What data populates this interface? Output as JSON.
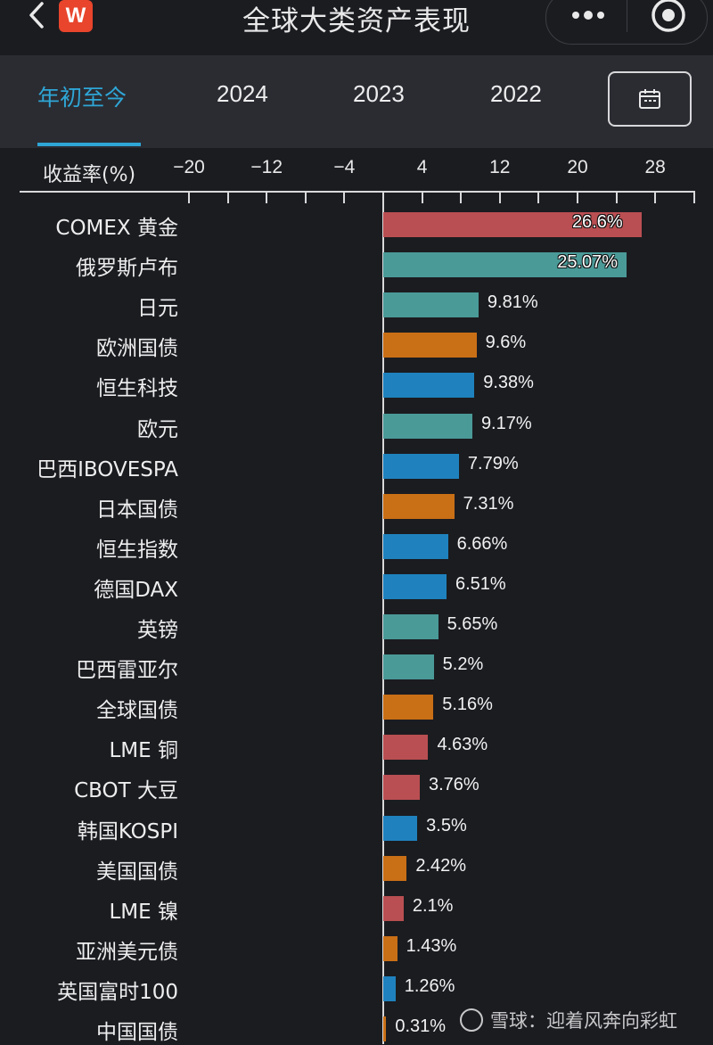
{
  "nav": {
    "title": "全球大类资产表现",
    "logo_text": "W",
    "back_icon": "chevron-left-icon",
    "more_icon": "more-dots-icon",
    "close_icon": "target-circle-icon"
  },
  "tabs": [
    {
      "label": "年初至今",
      "active": true
    },
    {
      "label": "2024",
      "active": false
    },
    {
      "label": "2023",
      "active": false
    },
    {
      "label": "2022",
      "active": false
    }
  ],
  "calendar_icon": "calendar-icon",
  "axis": {
    "title": "收益率(%)",
    "ticks": [
      "−20",
      "−12",
      "−4",
      "4",
      "12",
      "20",
      "28"
    ]
  },
  "colors": {
    "commodity": "#b94f52",
    "currency": "#4a9a98",
    "bond": "#c96f16",
    "equity": "#1f82be",
    "active_tab": "#2ea6d6"
  },
  "chart_data": {
    "type": "bar",
    "orientation": "horizontal",
    "xlabel": "收益率(%)",
    "xlim": [
      -24,
      32
    ],
    "xticks": [
      -20,
      -12,
      -4,
      4,
      12,
      20,
      28
    ],
    "rows": [
      {
        "label": "COMEX 黄金",
        "value": 26.6,
        "text": "26.6%",
        "group": "commodity"
      },
      {
        "label": "俄罗斯卢布",
        "value": 25.07,
        "text": "25.07%",
        "group": "currency"
      },
      {
        "label": "日元",
        "value": 9.81,
        "text": "9.81%",
        "group": "currency"
      },
      {
        "label": "欧洲国债",
        "value": 9.6,
        "text": "9.6%",
        "group": "bond"
      },
      {
        "label": "恒生科技",
        "value": 9.38,
        "text": "9.38%",
        "group": "equity"
      },
      {
        "label": "欧元",
        "value": 9.17,
        "text": "9.17%",
        "group": "currency"
      },
      {
        "label": "巴西IBOVESPA",
        "value": 7.79,
        "text": "7.79%",
        "group": "equity"
      },
      {
        "label": "日本国债",
        "value": 7.31,
        "text": "7.31%",
        "group": "bond"
      },
      {
        "label": "恒生指数",
        "value": 6.66,
        "text": "6.66%",
        "group": "equity"
      },
      {
        "label": "德国DAX",
        "value": 6.51,
        "text": "6.51%",
        "group": "equity"
      },
      {
        "label": "英镑",
        "value": 5.65,
        "text": "5.65%",
        "group": "currency"
      },
      {
        "label": "巴西雷亚尔",
        "value": 5.2,
        "text": "5.2%",
        "group": "currency"
      },
      {
        "label": "全球国债",
        "value": 5.16,
        "text": "5.16%",
        "group": "bond"
      },
      {
        "label": "LME 铜",
        "value": 4.63,
        "text": "4.63%",
        "group": "commodity"
      },
      {
        "label": "CBOT 大豆",
        "value": 3.76,
        "text": "3.76%",
        "group": "commodity"
      },
      {
        "label": "韩国KOSPI",
        "value": 3.5,
        "text": "3.5%",
        "group": "equity"
      },
      {
        "label": "美国国债",
        "value": 2.42,
        "text": "2.42%",
        "group": "bond"
      },
      {
        "label": "LME 镍",
        "value": 2.1,
        "text": "2.1%",
        "group": "commodity"
      },
      {
        "label": "亚洲美元债",
        "value": 1.43,
        "text": "1.43%",
        "group": "bond"
      },
      {
        "label": "英国富时100",
        "value": 1.26,
        "text": "1.26%",
        "group": "equity"
      },
      {
        "label": "中国国债",
        "value": 0.31,
        "text": "0.31%",
        "group": "bond"
      }
    ]
  },
  "watermark": {
    "text": "雪球：迎着风奔向彩虹"
  }
}
